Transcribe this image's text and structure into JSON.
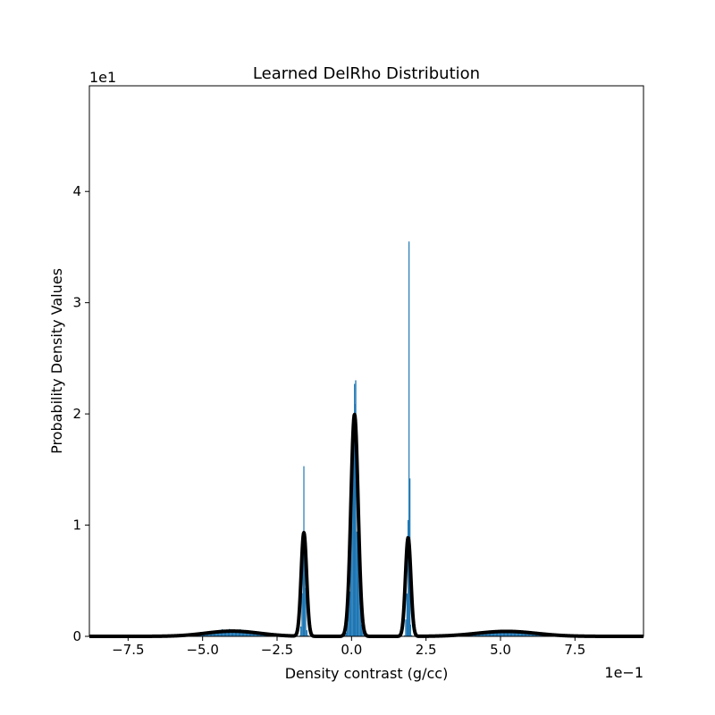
{
  "chart_data": {
    "type": "bar",
    "title": "Learned DelRho Distribution",
    "xlabel": "Density contrast (g/cc)",
    "ylabel": "Probability Density Values",
    "x_offset_label": "1e−1",
    "y_offset_label": "1e1",
    "xlim": [
      -8.8,
      9.8
    ],
    "ylim": [
      0,
      4.95
    ],
    "x_ticks": [
      -7.5,
      -5.0,
      -2.5,
      0.0,
      2.5,
      5.0,
      7.5
    ],
    "x_tick_labels": [
      "−7.5",
      "−5.0",
      "−2.5",
      "0.0",
      "2.5",
      "5.0",
      "7.5"
    ],
    "y_ticks": [
      0,
      1,
      2,
      3,
      4
    ],
    "y_tick_labels": [
      "0",
      "1",
      "2",
      "3",
      "4"
    ],
    "grid": false,
    "series": [
      {
        "kind": "histogram",
        "color": "#1f77b4",
        "components": [
          {
            "mean": -4.0,
            "sd": 0.8,
            "weight": 0.106
          },
          {
            "mean": -1.6,
            "sd": 0.045,
            "weight": 0.104
          },
          {
            "mean": 0.1,
            "sd": 0.1,
            "weight": 0.5
          },
          {
            "mean": 1.9,
            "sd": 0.04,
            "weight": 0.09
          },
          {
            "mean": 5.2,
            "sd": 1.0,
            "weight": 0.112
          }
        ],
        "spikes": [
          {
            "x": -1.6,
            "y": 1.53
          },
          {
            "x": 0.1,
            "y": 2.27
          },
          {
            "x": 0.12,
            "y": 2.09
          },
          {
            "x": 1.93,
            "y": 3.55
          },
          {
            "x": 1.96,
            "y": 1.42
          }
        ]
      },
      {
        "kind": "density_curve",
        "color": "#000000",
        "components": [
          {
            "mean": -4.0,
            "sd": 0.9,
            "weight": 0.106
          },
          {
            "mean": -1.6,
            "sd": 0.09,
            "weight": 0.21
          },
          {
            "mean": 0.1,
            "sd": 0.12,
            "weight": 0.6
          },
          {
            "mean": 1.9,
            "sd": 0.09,
            "weight": 0.2
          },
          {
            "mean": 5.2,
            "sd": 1.0,
            "weight": 0.112
          }
        ]
      }
    ]
  }
}
